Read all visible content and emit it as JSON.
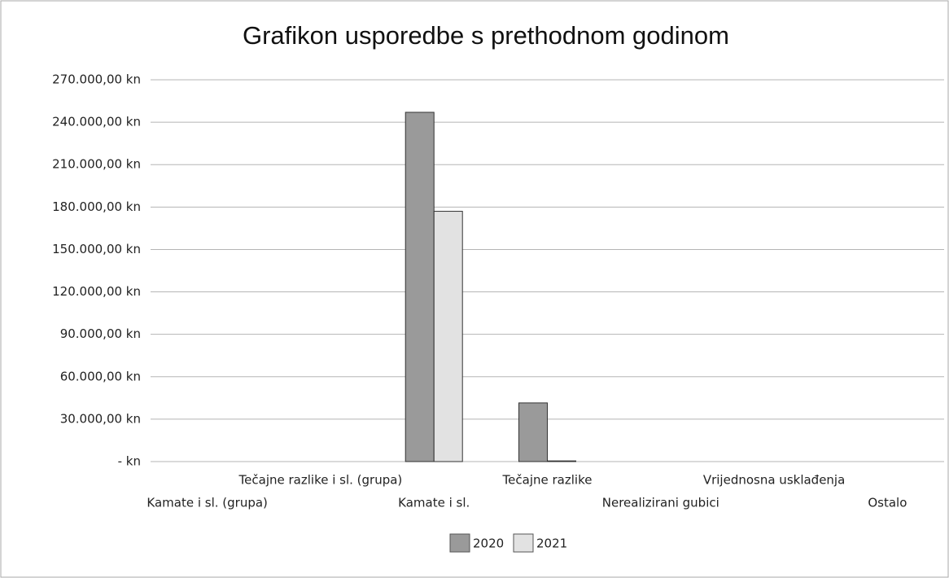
{
  "chart_data": {
    "type": "bar",
    "title": "Grafikon usporedbe s prethodnom godinom",
    "categories": [
      "Kamate i sl. (grupa)",
      "Tečajne razlike i sl. (grupa)",
      "Kamate i sl.",
      "Tečajne razlike",
      "Nerealizirani gubici",
      "Vrijednosna usklađenja",
      "Ostalo"
    ],
    "series": [
      {
        "name": "2020",
        "color": "#9a9a9a",
        "values": [
          0,
          0,
          247000,
          41500,
          0,
          0,
          0
        ]
      },
      {
        "name": "2021",
        "color": "#e2e2e2",
        "values": [
          0,
          0,
          177000,
          500,
          0,
          0,
          0
        ]
      }
    ],
    "ylim": [
      0,
      270000
    ],
    "yticks": [
      {
        "value": 0,
        "label": "- kn"
      },
      {
        "value": 30000,
        "label": "30.000,00 kn"
      },
      {
        "value": 60000,
        "label": "60.000,00 kn"
      },
      {
        "value": 90000,
        "label": "90.000,00 kn"
      },
      {
        "value": 120000,
        "label": "120.000,00 kn"
      },
      {
        "value": 150000,
        "label": "150.000,00 kn"
      },
      {
        "value": 180000,
        "label": "180.000,00 kn"
      },
      {
        "value": 210000,
        "label": "210.000,00 kn"
      },
      {
        "value": 240000,
        "label": "240.000,00 kn"
      },
      {
        "value": 270000,
        "label": "270.000,00 kn"
      }
    ],
    "grid": true,
    "legend": "bottom"
  }
}
